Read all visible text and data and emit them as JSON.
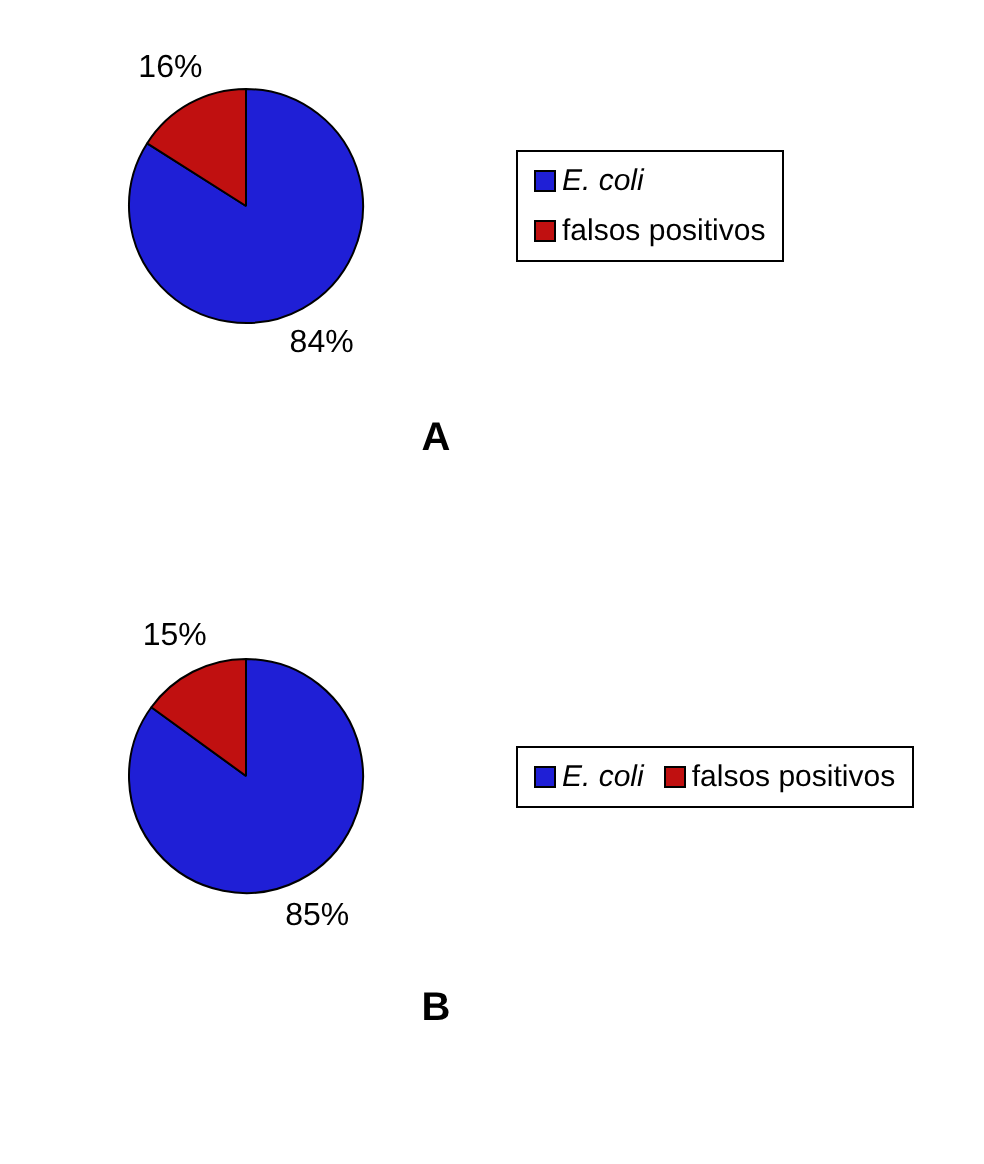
{
  "chart_data": [
    {
      "type": "pie",
      "title": "A",
      "categories": [
        "E. coli",
        "falsos positivos"
      ],
      "values": [
        84,
        16
      ],
      "colors": [
        "#1f1fd6",
        "#c01010"
      ],
      "value_labels": [
        "84%",
        "16%"
      ],
      "legend": "right"
    },
    {
      "type": "pie",
      "title": "B",
      "categories": [
        "E. coli",
        "falsos positivos"
      ],
      "values": [
        85,
        15
      ],
      "colors": [
        "#1f1fd6",
        "#c01010"
      ],
      "value_labels": [
        "85%",
        "15%"
      ],
      "legend": "right"
    }
  ]
}
